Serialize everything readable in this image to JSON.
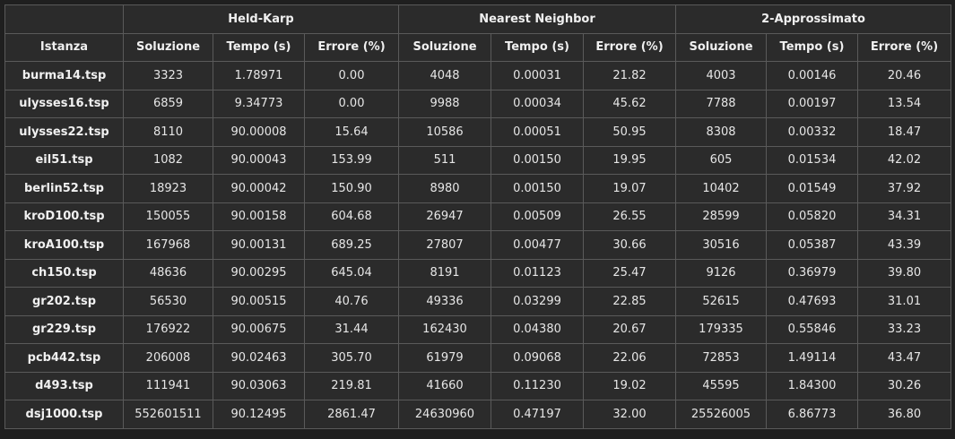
{
  "groups": [
    "",
    "Held-Karp",
    "Nearest Neighbor",
    "2-Approssimato"
  ],
  "columns": [
    "Istanza",
    "Soluzione",
    "Tempo (s)",
    "Errore (%)",
    "Soluzione",
    "Tempo (s)",
    "Errore (%)",
    "Soluzione",
    "Tempo (s)",
    "Errore (%)"
  ],
  "rows": [
    [
      "burma14.tsp",
      "3323",
      "1.78971",
      "0.00",
      "4048",
      "0.00031",
      "21.82",
      "4003",
      "0.00146",
      "20.46"
    ],
    [
      "ulysses16.tsp",
      "6859",
      "9.34773",
      "0.00",
      "9988",
      "0.00034",
      "45.62",
      "7788",
      "0.00197",
      "13.54"
    ],
    [
      "ulysses22.tsp",
      "8110",
      "90.00008",
      "15.64",
      "10586",
      "0.00051",
      "50.95",
      "8308",
      "0.00332",
      "18.47"
    ],
    [
      "eil51.tsp",
      "1082",
      "90.00043",
      "153.99",
      "511",
      "0.00150",
      "19.95",
      "605",
      "0.01534",
      "42.02"
    ],
    [
      "berlin52.tsp",
      "18923",
      "90.00042",
      "150.90",
      "8980",
      "0.00150",
      "19.07",
      "10402",
      "0.01549",
      "37.92"
    ],
    [
      "kroD100.tsp",
      "150055",
      "90.00158",
      "604.68",
      "26947",
      "0.00509",
      "26.55",
      "28599",
      "0.05820",
      "34.31"
    ],
    [
      "kroA100.tsp",
      "167968",
      "90.00131",
      "689.25",
      "27807",
      "0.00477",
      "30.66",
      "30516",
      "0.05387",
      "43.39"
    ],
    [
      "ch150.tsp",
      "48636",
      "90.00295",
      "645.04",
      "8191",
      "0.01123",
      "25.47",
      "9126",
      "0.36979",
      "39.80"
    ],
    [
      "gr202.tsp",
      "56530",
      "90.00515",
      "40.76",
      "49336",
      "0.03299",
      "22.85",
      "52615",
      "0.47693",
      "31.01"
    ],
    [
      "gr229.tsp",
      "176922",
      "90.00675",
      "31.44",
      "162430",
      "0.04380",
      "20.67",
      "179335",
      "0.55846",
      "33.23"
    ],
    [
      "pcb442.tsp",
      "206008",
      "90.02463",
      "305.70",
      "61979",
      "0.09068",
      "22.06",
      "72853",
      "1.49114",
      "43.47"
    ],
    [
      "d493.tsp",
      "111941",
      "90.03063",
      "219.81",
      "41660",
      "0.11230",
      "19.02",
      "45595",
      "1.84300",
      "30.26"
    ],
    [
      "dsj1000.tsp",
      "552601511",
      "90.12495",
      "2861.47",
      "24630960",
      "0.47197",
      "32.00",
      "25526005",
      "6.86773",
      "36.80"
    ]
  ]
}
